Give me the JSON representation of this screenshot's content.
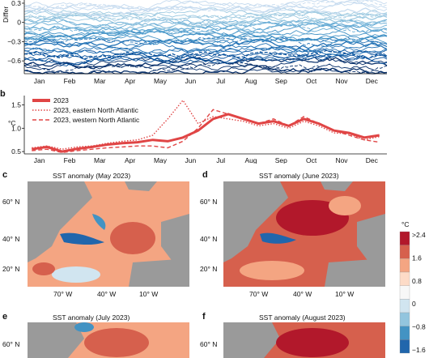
{
  "chart_data": [
    {
      "panel": "a",
      "type": "line",
      "ylabel": "Differ",
      "yticks": [
        "0.3",
        "0",
        "−0.3",
        "−0.6"
      ],
      "months": [
        "Jan",
        "Feb",
        "Mar",
        "Apr",
        "May",
        "Jun",
        "Jul",
        "Aug",
        "Sep",
        "Oct",
        "Nov",
        "Dec"
      ],
      "ylim": [
        -0.8,
        0.35
      ],
      "series_count": 40,
      "series_range": [
        -0.75,
        0.3
      ],
      "colors": [
        "#c6dbef",
        "#9ecae1",
        "#6baed6",
        "#4292c6",
        "#2171b5",
        "#08519c",
        "#08306b"
      ]
    },
    {
      "panel": "b",
      "type": "line",
      "ylabel": "°C",
      "yticks": [
        "0.5",
        "1.0",
        "1.5"
      ],
      "ylim": [
        0.45,
        1.7
      ],
      "months": [
        "Jan",
        "Feb",
        "Mar",
        "Apr",
        "May",
        "Jun",
        "Jul",
        "Aug",
        "Sep",
        "Oct",
        "Nov",
        "Dec"
      ],
      "legend": [
        "2023",
        "2023, eastern North Atlantic",
        "2023, western North Atlantic"
      ],
      "x_month": [
        0,
        0.5,
        1,
        1.5,
        2,
        2.5,
        3,
        3.5,
        4,
        4.5,
        5,
        5.5,
        6,
        6.5,
        7,
        7.5,
        8,
        8.5,
        9,
        9.5,
        10,
        10.5,
        11,
        11.5
      ],
      "series": [
        {
          "name": "2023",
          "style": "solid",
          "values": [
            0.55,
            0.6,
            0.5,
            0.56,
            0.6,
            0.65,
            0.68,
            0.7,
            0.75,
            0.72,
            0.8,
            0.95,
            1.2,
            1.3,
            1.2,
            1.1,
            1.15,
            1.05,
            1.2,
            1.1,
            0.95,
            0.9,
            0.8,
            0.85
          ]
        },
        {
          "name": "2023, eastern North Atlantic",
          "style": "dotted",
          "values": [
            0.58,
            0.62,
            0.55,
            0.6,
            0.62,
            0.68,
            0.72,
            0.75,
            0.85,
            1.2,
            1.6,
            1.1,
            1.25,
            1.2,
            1.15,
            1.05,
            1.1,
            1.0,
            1.15,
            1.05,
            0.9,
            0.88,
            0.75,
            0.82
          ]
        },
        {
          "name": "2023, western North Atlantic",
          "style": "dashed",
          "values": [
            0.52,
            0.55,
            0.48,
            0.52,
            0.55,
            0.58,
            0.6,
            0.62,
            0.62,
            0.58,
            0.72,
            1.0,
            1.4,
            1.3,
            1.2,
            1.1,
            1.2,
            1.05,
            1.25,
            1.1,
            0.95,
            0.85,
            0.75,
            0.7
          ]
        }
      ]
    }
  ],
  "maps": [
    {
      "label": "c",
      "title": "SST anomaly (May 2023)",
      "lat_ticks": [
        "60° N",
        "40° N",
        "20° N"
      ],
      "lon_ticks": [
        "70° W",
        "40° W",
        "10° W"
      ]
    },
    {
      "label": "d",
      "title": "SST anomaly (June 2023)",
      "lat_ticks": [
        "60° N",
        "40° N",
        "20° N"
      ],
      "lon_ticks": [
        "70° W",
        "40° W",
        "10° W"
      ]
    },
    {
      "label": "e",
      "title": "SST anomaly (July 2023)",
      "lat_ticks": [
        "60° N"
      ]
    },
    {
      "label": "f",
      "title": "SST anomaly (August 2023)",
      "lat_ticks": [
        "60° N"
      ]
    }
  ],
  "colorbar": {
    "unit": "°C",
    "labels": [
      ">2.4",
      "1.6",
      "0.8",
      "0",
      "−0.8",
      "−1.6"
    ],
    "colors": [
      "#b2182b",
      "#d6604d",
      "#f4a582",
      "#fddbc7",
      "#f7f7f7",
      "#d1e5f0",
      "#92c5de",
      "#4393c3",
      "#2166ac"
    ]
  }
}
